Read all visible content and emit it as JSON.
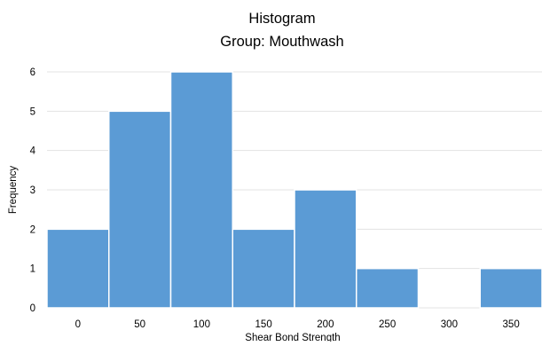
{
  "chart_data": {
    "type": "bar",
    "title": "Histogram",
    "subtitle": "Group: Mouthwash",
    "xlabel": "Shear Bond Strength",
    "ylabel": "Frequency",
    "categories": [
      "0",
      "50",
      "100",
      "150",
      "200",
      "250",
      "300",
      "350"
    ],
    "values": [
      2,
      5,
      6,
      2,
      3,
      1,
      0,
      1
    ],
    "y_ticks": [
      "0",
      "1",
      "2",
      "3",
      "4",
      "5",
      "6"
    ],
    "ylim": [
      0,
      6
    ],
    "grid": true,
    "legend": "none",
    "bar_color": "#5b9bd5",
    "grid_color": "#e3e3e3"
  }
}
